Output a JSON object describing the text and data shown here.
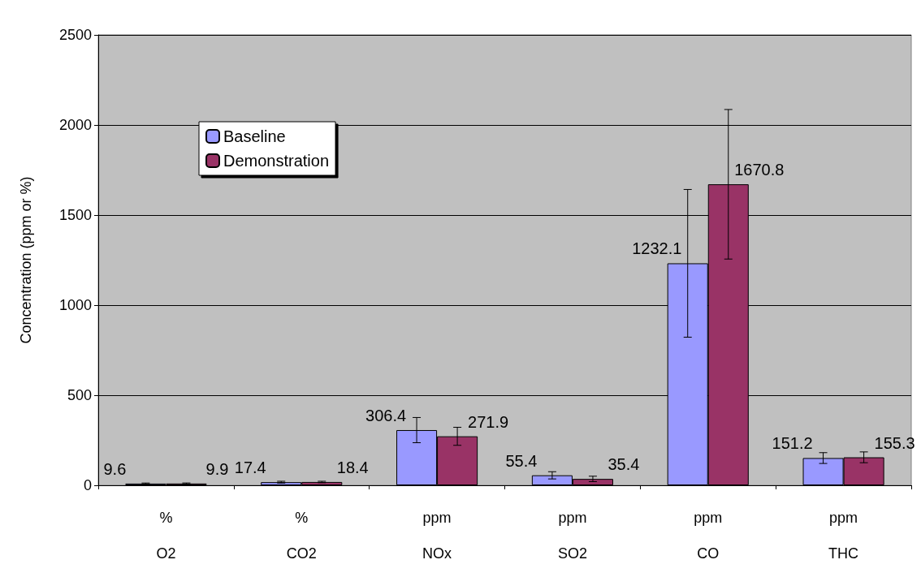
{
  "chart_data": {
    "type": "bar",
    "ylabel": "Concentration (ppm or %)",
    "categories": [
      "%\nO2",
      "%\nCO2",
      "ppm\nNOx",
      "ppm\nSO2",
      "ppm\nCO",
      "ppm\nTHC"
    ],
    "series": [
      {
        "name": "Baseline",
        "color": "#9999ff",
        "values": [
          9.6,
          17.4,
          306.4,
          55.4,
          1232.1,
          151.2
        ],
        "errors": [
          3,
          5,
          70,
          20,
          410,
          30
        ]
      },
      {
        "name": "Demonstration",
        "color": "#993366",
        "values": [
          9.9,
          18.4,
          271.9,
          35.4,
          1670.8,
          155.3
        ],
        "errors": [
          3,
          4,
          50,
          15,
          415,
          30
        ]
      }
    ],
    "ylim": [
      0,
      2500
    ],
    "yticks": [
      0,
      500,
      1000,
      1500,
      2000,
      2500
    ],
    "grid": "y",
    "legend": "top left",
    "data_labels": true
  }
}
